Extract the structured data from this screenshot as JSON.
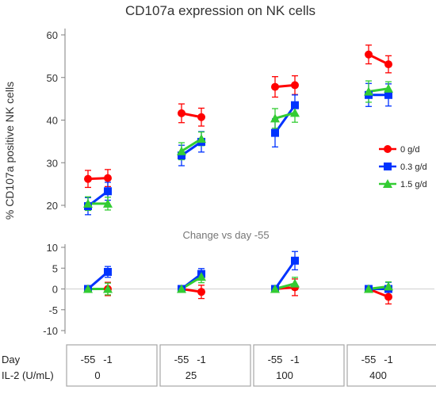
{
  "chart_data": {
    "type": "line",
    "title": "CD107a expression on NK cells",
    "ylabel": "% CD107a  positive NK cells",
    "subtitle": "Change vs day -55",
    "top_panel": {
      "ylim": [
        15,
        60
      ],
      "yticks": [
        20,
        30,
        40,
        50,
        60
      ]
    },
    "bottom_panel": {
      "ylim": [
        -12,
        11
      ],
      "yticks": [
        -10,
        -5,
        0,
        5,
        10
      ]
    },
    "groups": [
      {
        "il2": "0",
        "days": [
          "-55",
          "-1"
        ]
      },
      {
        "il2": "25",
        "days": [
          "-55",
          "-1"
        ]
      },
      {
        "il2": "100",
        "days": [
          "-55",
          "-1"
        ]
      },
      {
        "il2": "400",
        "days": [
          "-55",
          "-1"
        ]
      }
    ],
    "row_labels": {
      "day": "Day",
      "il2": "IL-2 (U/mL)"
    },
    "legend_position": "right",
    "series": [
      {
        "name": "0 g/d",
        "color": "#ff0000",
        "marker": "circle",
        "values": [
          [
            26.2,
            26.4
          ],
          [
            41.6,
            40.7
          ],
          [
            47.8,
            48.2
          ],
          [
            55.4,
            53.1
          ]
        ],
        "errors": [
          [
            2.0,
            2.0
          ],
          [
            2.2,
            2.1
          ],
          [
            2.4,
            2.2
          ],
          [
            2.2,
            2.0
          ]
        ],
        "change": [
          [
            0.0,
            0.0
          ],
          [
            0.0,
            -0.7
          ],
          [
            0.0,
            0.4
          ],
          [
            0.0,
            -1.9
          ]
        ],
        "change_errors": [
          [
            0.3,
            1.6
          ],
          [
            0.4,
            1.6
          ],
          [
            0.4,
            2.0
          ],
          [
            0.4,
            1.7
          ]
        ]
      },
      {
        "name": "0.3 g/d",
        "color": "#0033ff",
        "marker": "square",
        "values": [
          [
            19.8,
            23.3
          ],
          [
            31.7,
            34.9
          ],
          [
            37.0,
            43.5
          ],
          [
            45.9,
            45.9
          ]
        ],
        "errors": [
          [
            2.0,
            2.1
          ],
          [
            2.4,
            2.4
          ],
          [
            3.3,
            2.4
          ],
          [
            2.7,
            2.6
          ]
        ],
        "change": [
          [
            0.0,
            4.1
          ],
          [
            0.0,
            3.6
          ],
          [
            0.0,
            6.8
          ],
          [
            0.0,
            0.0
          ]
        ],
        "change_errors": [
          [
            0.3,
            1.3
          ],
          [
            0.4,
            1.3
          ],
          [
            0.4,
            2.2
          ],
          [
            0.4,
            1.6
          ]
        ]
      },
      {
        "name": "1.5 g/d",
        "color": "#33cc33",
        "marker": "triangle",
        "values": [
          [
            20.4,
            20.4
          ],
          [
            32.7,
            35.6
          ],
          [
            40.4,
            41.7
          ],
          [
            46.7,
            47.4
          ]
        ],
        "errors": [
          [
            1.6,
            1.5
          ],
          [
            2.0,
            1.6
          ],
          [
            2.3,
            2.2
          ],
          [
            2.5,
            1.6
          ]
        ],
        "change": [
          [
            0.0,
            0.0
          ],
          [
            0.0,
            2.9
          ],
          [
            0.0,
            1.3
          ],
          [
            0.0,
            0.6
          ]
        ],
        "change_errors": [
          [
            0.3,
            1.4
          ],
          [
            0.4,
            1.4
          ],
          [
            0.4,
            1.5
          ],
          [
            0.4,
            1.1
          ]
        ]
      }
    ]
  }
}
